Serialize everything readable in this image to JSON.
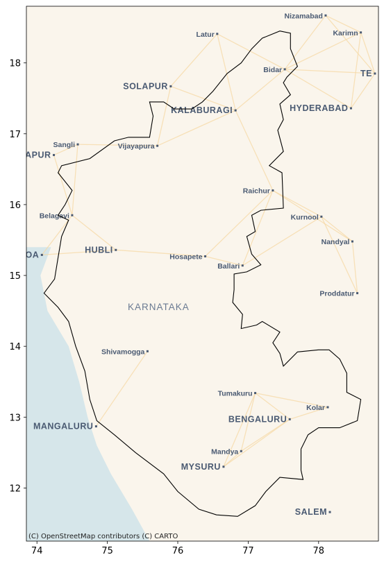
{
  "map": {
    "extent": {
      "lon_min": 73.85,
      "lon_max": 78.85,
      "lat_min": 11.25,
      "lat_max": 18.8
    },
    "x_ticks": [
      {
        "value": 74,
        "label": "74"
      },
      {
        "value": 75,
        "label": "75"
      },
      {
        "value": 76,
        "label": "76"
      },
      {
        "value": 77,
        "label": "77"
      },
      {
        "value": 78,
        "label": "78"
      }
    ],
    "y_ticks": [
      {
        "value": 12,
        "label": "12"
      },
      {
        "value": 13,
        "label": "13"
      },
      {
        "value": 14,
        "label": "14"
      },
      {
        "value": 15,
        "label": "15"
      },
      {
        "value": 16,
        "label": "16"
      },
      {
        "value": 17,
        "label": "17"
      },
      {
        "value": 18,
        "label": "18"
      }
    ],
    "colors": {
      "land": "#faf5ec",
      "sea": "#d6e6ea",
      "roads": "#f6d9a6",
      "boundary": "#000000",
      "label": "#4a5a72"
    },
    "region_label": "KARNATAKA",
    "places": [
      {
        "name": "Nizamabad",
        "lon": 78.1,
        "lat": 18.67,
        "major": false
      },
      {
        "name": "Karimn",
        "lon": 78.6,
        "lat": 18.43,
        "major": false
      },
      {
        "name": "Latur",
        "lon": 76.56,
        "lat": 18.41,
        "major": false
      },
      {
        "name": "Bidar",
        "lon": 77.52,
        "lat": 17.91,
        "major": false
      },
      {
        "name": "TE",
        "lon": 78.8,
        "lat": 17.85,
        "major": true
      },
      {
        "name": "SOLAPUR",
        "lon": 75.9,
        "lat": 17.67,
        "major": true
      },
      {
        "name": "KALABURAGI",
        "lon": 76.82,
        "lat": 17.33,
        "major": true
      },
      {
        "name": "HYDERABAD",
        "lon": 78.46,
        "lat": 17.36,
        "major": true
      },
      {
        "name": "Sangli",
        "lon": 74.58,
        "lat": 16.85,
        "major": false
      },
      {
        "name": "Vijayapura",
        "lon": 75.71,
        "lat": 16.83,
        "major": false
      },
      {
        "name": "APUR",
        "lon": 74.24,
        "lat": 16.7,
        "major": true
      },
      {
        "name": "Raichur",
        "lon": 77.35,
        "lat": 16.2,
        "major": false
      },
      {
        "name": "Belagavi",
        "lon": 74.5,
        "lat": 15.85,
        "major": false
      },
      {
        "name": "Kurnool",
        "lon": 78.04,
        "lat": 15.83,
        "major": false
      },
      {
        "name": "GOA",
        "lon": 74.07,
        "lat": 15.29,
        "major": true
      },
      {
        "name": "HUBLI",
        "lon": 75.12,
        "lat": 15.36,
        "major": true
      },
      {
        "name": "Nandyal",
        "lon": 78.48,
        "lat": 15.48,
        "major": false
      },
      {
        "name": "Hosapete",
        "lon": 76.39,
        "lat": 15.27,
        "major": false
      },
      {
        "name": "Ballari",
        "lon": 76.92,
        "lat": 15.14,
        "major": false
      },
      {
        "name": "Proddatur",
        "lon": 78.55,
        "lat": 14.75,
        "major": false
      },
      {
        "name": "Shivamogga",
        "lon": 75.57,
        "lat": 13.93,
        "major": false
      },
      {
        "name": "Tumakuru",
        "lon": 77.1,
        "lat": 13.34,
        "major": false
      },
      {
        "name": "Kolar",
        "lon": 78.13,
        "lat": 13.14,
        "major": false
      },
      {
        "name": "BENGALURU",
        "lon": 77.59,
        "lat": 12.97,
        "major": true
      },
      {
        "name": "MANGALURU",
        "lon": 74.84,
        "lat": 12.87,
        "major": true
      },
      {
        "name": "Mandya",
        "lon": 76.9,
        "lat": 12.52,
        "major": false
      },
      {
        "name": "MYSURU",
        "lon": 76.65,
        "lat": 12.3,
        "major": true
      },
      {
        "name": "SALEM",
        "lon": 78.16,
        "lat": 11.66,
        "major": true
      }
    ],
    "boundary": [
      [
        77.45,
        18.45
      ],
      [
        77.6,
        18.42
      ],
      [
        77.6,
        18.2
      ],
      [
        77.7,
        17.95
      ],
      [
        77.55,
        17.8
      ],
      [
        77.5,
        17.72
      ],
      [
        77.6,
        17.55
      ],
      [
        77.45,
        17.42
      ],
      [
        77.5,
        17.2
      ],
      [
        77.42,
        17.05
      ],
      [
        77.5,
        16.75
      ],
      [
        77.3,
        16.55
      ],
      [
        77.48,
        16.45
      ],
      [
        77.5,
        15.95
      ],
      [
        77.18,
        15.92
      ],
      [
        77.05,
        15.85
      ],
      [
        77.1,
        15.62
      ],
      [
        76.98,
        15.55
      ],
      [
        77.05,
        15.3
      ],
      [
        77.18,
        15.15
      ],
      [
        76.98,
        15.05
      ],
      [
        76.8,
        15.02
      ],
      [
        76.8,
        14.8
      ],
      [
        76.78,
        14.62
      ],
      [
        76.92,
        14.45
      ],
      [
        76.9,
        14.25
      ],
      [
        77.12,
        14.3
      ],
      [
        77.2,
        14.35
      ],
      [
        77.45,
        14.2
      ],
      [
        77.35,
        14.05
      ],
      [
        77.45,
        13.9
      ],
      [
        77.5,
        13.72
      ],
      [
        77.7,
        13.92
      ],
      [
        78.0,
        13.95
      ],
      [
        78.15,
        13.95
      ],
      [
        78.3,
        13.82
      ],
      [
        78.4,
        13.62
      ],
      [
        78.4,
        13.35
      ],
      [
        78.6,
        13.25
      ],
      [
        78.55,
        12.95
      ],
      [
        78.3,
        12.85
      ],
      [
        78.0,
        12.85
      ],
      [
        77.85,
        12.75
      ],
      [
        77.75,
        12.55
      ],
      [
        77.75,
        12.25
      ],
      [
        77.78,
        12.12
      ],
      [
        77.45,
        12.15
      ],
      [
        77.25,
        11.95
      ],
      [
        77.1,
        11.75
      ],
      [
        76.85,
        11.6
      ],
      [
        76.55,
        11.62
      ],
      [
        76.3,
        11.7
      ],
      [
        76.0,
        11.95
      ],
      [
        75.8,
        12.2
      ],
      [
        75.4,
        12.5
      ],
      [
        75.1,
        12.75
      ],
      [
        74.85,
        12.95
      ],
      [
        74.75,
        13.25
      ],
      [
        74.68,
        13.65
      ],
      [
        74.55,
        14.0
      ],
      [
        74.45,
        14.35
      ],
      [
        74.3,
        14.55
      ],
      [
        74.1,
        14.75
      ],
      [
        74.25,
        14.95
      ],
      [
        74.3,
        15.25
      ],
      [
        74.35,
        15.55
      ],
      [
        74.45,
        15.78
      ],
      [
        74.3,
        15.85
      ],
      [
        74.4,
        16.0
      ],
      [
        74.5,
        16.2
      ],
      [
        74.3,
        16.45
      ],
      [
        74.35,
        16.55
      ],
      [
        74.75,
        16.65
      ],
      [
        75.1,
        16.9
      ],
      [
        75.3,
        16.95
      ],
      [
        75.6,
        16.95
      ],
      [
        75.65,
        17.25
      ],
      [
        75.6,
        17.45
      ],
      [
        75.8,
        17.45
      ],
      [
        75.95,
        17.35
      ],
      [
        76.2,
        17.35
      ],
      [
        76.35,
        17.45
      ],
      [
        76.5,
        17.6
      ],
      [
        76.7,
        17.85
      ],
      [
        76.9,
        18.0
      ],
      [
        77.05,
        18.2
      ],
      [
        77.2,
        18.35
      ],
      [
        77.45,
        18.45
      ]
    ],
    "attribution": "(C) OpenStreetMap contributors (C) CARTO"
  }
}
